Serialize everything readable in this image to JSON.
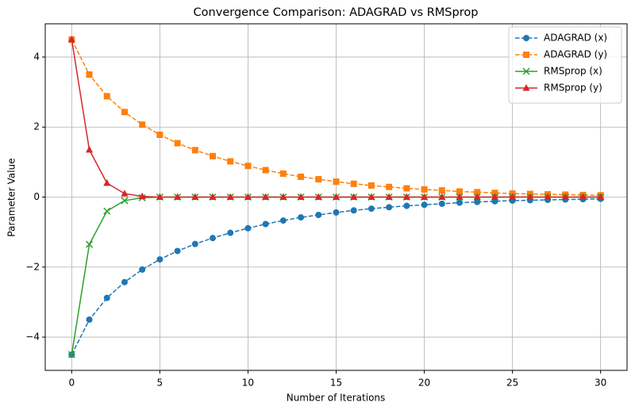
{
  "chart_data": {
    "type": "line",
    "title": "Convergence Comparison: ADAGRAD vs RMSprop",
    "x_label": "Number of Iterations",
    "y_label": "Parameter Value",
    "x": [
      0,
      1,
      2,
      3,
      4,
      5,
      6,
      7,
      8,
      9,
      10,
      11,
      12,
      13,
      14,
      15,
      16,
      17,
      18,
      19,
      20,
      21,
      22,
      23,
      24,
      25,
      26,
      27,
      28,
      29,
      30
    ],
    "series": [
      {
        "name": "ADAGRAD (x)",
        "color": "#1f77b4",
        "linestyle": "dashed",
        "marker": "circle",
        "values": [
          -4.5,
          -3.5,
          -2.88,
          -2.43,
          -2.07,
          -1.78,
          -1.54,
          -1.34,
          -1.17,
          -1.02,
          -0.89,
          -0.77,
          -0.67,
          -0.58,
          -0.51,
          -0.44,
          -0.38,
          -0.33,
          -0.29,
          -0.25,
          -0.22,
          -0.19,
          -0.16,
          -0.14,
          -0.12,
          -0.1,
          -0.09,
          -0.08,
          -0.07,
          -0.06,
          -0.05
        ]
      },
      {
        "name": "ADAGRAD (y)",
        "color": "#ff7f0e",
        "linestyle": "dashed",
        "marker": "square",
        "values": [
          4.5,
          3.5,
          2.88,
          2.43,
          2.07,
          1.78,
          1.54,
          1.34,
          1.17,
          1.02,
          0.89,
          0.77,
          0.67,
          0.58,
          0.51,
          0.44,
          0.38,
          0.33,
          0.29,
          0.25,
          0.22,
          0.19,
          0.16,
          0.14,
          0.12,
          0.1,
          0.09,
          0.08,
          0.07,
          0.06,
          0.05
        ]
      },
      {
        "name": "RMSprop (x)",
        "color": "#2ca02c",
        "linestyle": "solid",
        "marker": "x",
        "values": [
          -4.5,
          -1.35,
          -0.4,
          -0.1,
          -0.02,
          0,
          0,
          0,
          0,
          0,
          0,
          0,
          0,
          0,
          0,
          0,
          0,
          0,
          0,
          0,
          0,
          0,
          0,
          0,
          0,
          0,
          0,
          0,
          0,
          0,
          0
        ]
      },
      {
        "name": "RMSprop (y)",
        "color": "#d62728",
        "linestyle": "solid",
        "marker": "triangle",
        "values": [
          4.5,
          1.35,
          0.4,
          0.1,
          0.02,
          0,
          0,
          0,
          0,
          0,
          0,
          0,
          0,
          0,
          0,
          0,
          0,
          0,
          0,
          0,
          0,
          0,
          0,
          0,
          0,
          0,
          0,
          0,
          0,
          0,
          0
        ]
      }
    ],
    "xlim": [
      -1.5,
      31.5
    ],
    "ylim": [
      -4.95,
      4.95
    ],
    "xticks": [
      0,
      5,
      10,
      15,
      20,
      25,
      30
    ],
    "yticks": [
      {
        "value": -4,
        "label": "−4"
      },
      {
        "value": -2,
        "label": "−2"
      },
      0,
      2,
      4
    ],
    "grid": true,
    "legend": "upper right"
  }
}
